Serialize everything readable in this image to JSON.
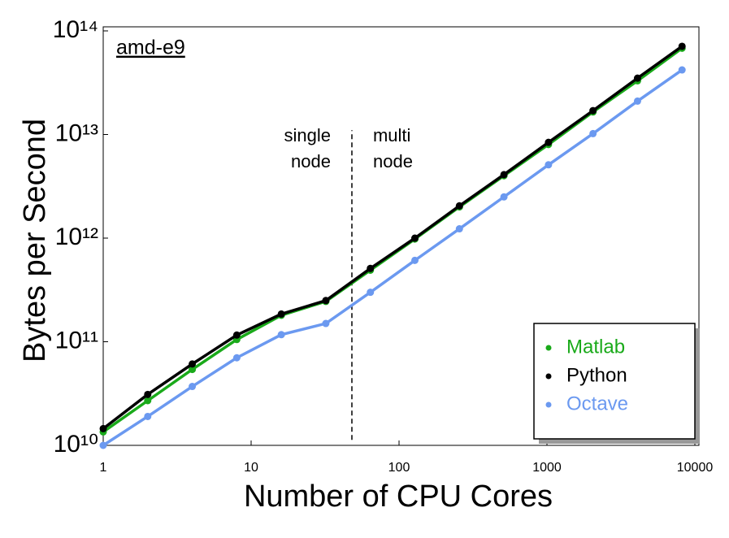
{
  "chart_data": {
    "type": "line",
    "x_label": "Number of CPU Cores",
    "y_label": "Bytes per Second",
    "x_log": true,
    "y_log": true,
    "x": [
      1,
      2,
      4,
      8,
      16,
      32,
      64,
      128,
      256,
      512,
      1024,
      2048,
      4096,
      8192
    ],
    "series": [
      {
        "name": "Matlab",
        "color": "#1aaa1a",
        "values": [
          13500000000.0,
          27000000000.0,
          54000000000.0,
          105000000000.0,
          180000000000.0,
          245000000000.0,
          490000000000.0,
          980000000000.0,
          2000000000000.0,
          4000000000000.0,
          8000000000000.0,
          16500000000000.0,
          33000000000000.0,
          68000000000000.0
        ]
      },
      {
        "name": "Python",
        "color": "#000000",
        "values": [
          14500000000.0,
          31000000000.0,
          61000000000.0,
          116000000000.0,
          185000000000.0,
          250000000000.0,
          510000000000.0,
          1000000000000.0,
          2050000000000.0,
          4100000000000.0,
          8400000000000.0,
          17000000000000.0,
          35000000000000.0,
          71000000000000.0
        ]
      },
      {
        "name": "Octave",
        "color": "#6b99f0",
        "values": [
          10000000000.0,
          19000000000.0,
          37000000000.0,
          70000000000.0,
          117000000000.0,
          150000000000.0,
          300000000000.0,
          610000000000.0,
          1230000000000.0,
          2500000000000.0,
          5100000000000.0,
          10200000000000.0,
          21000000000000.0,
          42000000000000.0
        ]
      }
    ],
    "xlim": [
      1,
      10000
    ],
    "ylim": [
      10000000000.0,
      100000000000000.0
    ],
    "xticks": [
      1,
      10,
      100,
      1000,
      10000
    ],
    "yticks": [
      {
        "value": 10000000000.0,
        "label": "10¹⁰"
      },
      {
        "value": 100000000000.0,
        "label": "10¹¹"
      },
      {
        "value": 1000000000000.0,
        "label": "10¹²"
      },
      {
        "value": 10000000000000.0,
        "label": "10¹³"
      },
      {
        "value": 100000000000000.0,
        "label": "10¹⁴"
      }
    ],
    "legend": "lower right",
    "machine_label": "amd-e9",
    "divider_x": 48,
    "divider_ylim": [
      11300000000.0,
      11000000000000.0
    ],
    "divider_left": [
      "single",
      "node"
    ],
    "divider_right": [
      "multi",
      "node"
    ]
  }
}
